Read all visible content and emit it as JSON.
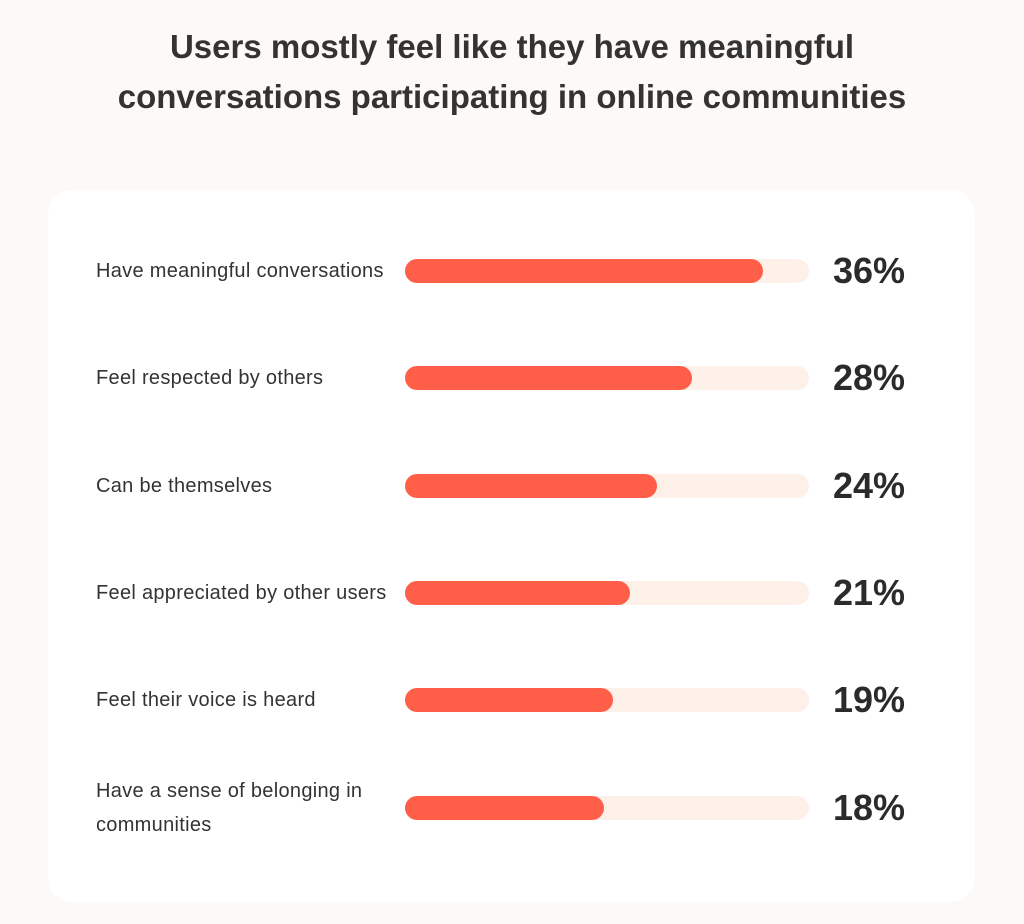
{
  "chart_data": {
    "type": "bar",
    "orientation": "horizontal",
    "title": "Users mostly feel like they have meaningful conversations participating in online communities",
    "categories": [
      "Have meaningful conversations",
      "Feel respected by others",
      "Can be themselves",
      "Feel appreciated by other users",
      "Feel their voice is heard",
      "Have a sense of belonging in communities"
    ],
    "values": [
      36,
      28,
      24,
      21,
      19,
      18
    ],
    "value_labels": [
      "36%",
      "28%",
      "24%",
      "21%",
      "19%",
      "18%"
    ],
    "grid": false,
    "colors": {
      "bar": "#ff5f49",
      "track": "#fdf0e9",
      "background": "#fdf9f6",
      "card": "#ffffff"
    }
  }
}
